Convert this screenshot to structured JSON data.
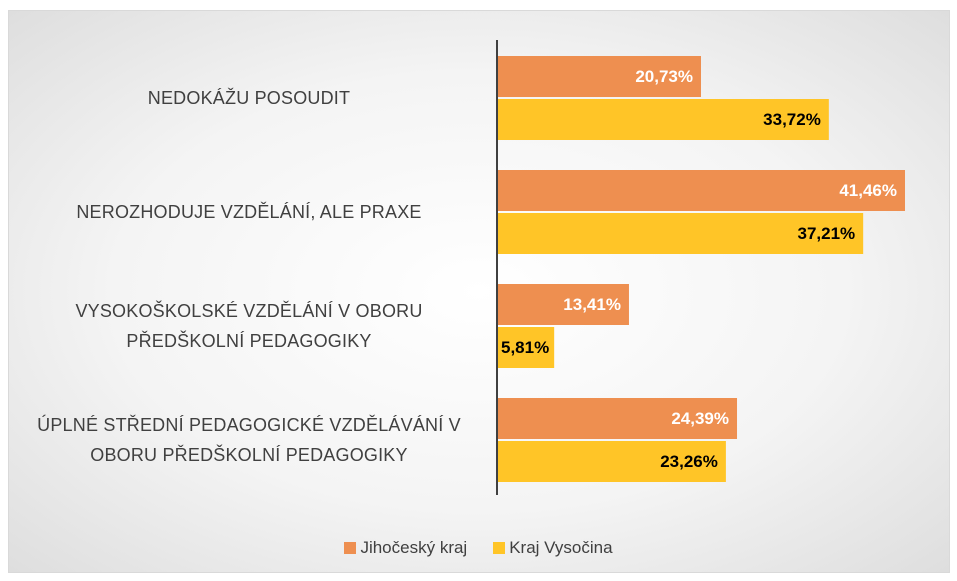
{
  "chart_data": {
    "type": "bar",
    "orientation": "horizontal",
    "categories": [
      "NEDOKÁŽU POSOUDIT",
      "NEROZHODUJE VZDĚLÁNÍ, ALE PRAXE",
      "VYSOKOŠKOLSKÉ VZDĚLÁNÍ V OBORU\nPŘEDŠKOLNÍ PEDAGOGIKY",
      "ÚPLNÉ STŘEDNÍ PEDAGOGICKÉ VZDĚLÁVÁNÍ V\nOBORU PŘEDŠKOLNÍ PEDAGOGIKY"
    ],
    "series": [
      {
        "name": "Jihočeský kraj",
        "color": "#ee8f50",
        "label_color": "#ffffff",
        "values": [
          20.73,
          41.46,
          13.41,
          24.39
        ],
        "value_labels": [
          "20,73%",
          "41,46%",
          "13,41%",
          "24,39%"
        ]
      },
      {
        "name": "Kraj Vysočina",
        "color": "#ffc527",
        "label_color": "#000000",
        "values": [
          33.72,
          37.21,
          5.81,
          23.26
        ],
        "value_labels": [
          "33,72%",
          "37,21%",
          "5,81%",
          "23,26%"
        ]
      }
    ],
    "legend": "bottom"
  }
}
